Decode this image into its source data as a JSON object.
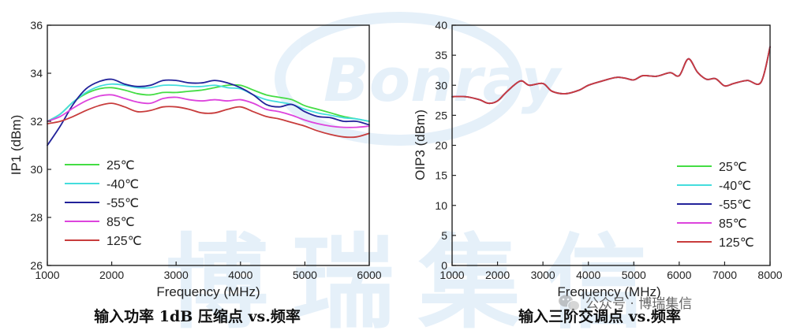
{
  "watermark": {
    "logo_text": "Bonray",
    "chars": [
      "博",
      "瑞",
      "集",
      "信"
    ]
  },
  "account_badge": {
    "icon": "wechat-icon",
    "label": "公众号 · 博瑞集信"
  },
  "colors": {
    "s25": "#44dd44",
    "sm40": "#44dddd",
    "sm55": "#22229a",
    "s85": "#dd44dd",
    "s125": "#c83c3c",
    "watermark": "#3f8fd8"
  },
  "chart_data": [
    {
      "type": "line",
      "caption": "输入功率 1dB 压缩点 vs.频率",
      "xlabel": "Frequency (MHz)",
      "ylabel": "IP1 (dBm)",
      "xlim": [
        1000,
        6000
      ],
      "ylim": [
        26,
        36
      ],
      "xticks": [
        1000,
        2000,
        3000,
        4000,
        5000,
        6000
      ],
      "yticks": [
        26,
        28,
        30,
        32,
        34,
        36
      ],
      "grid": false,
      "legend_position": "bottom-left",
      "series": [
        {
          "name": "25℃",
          "color_key": "s25",
          "x": [
            1000,
            1200,
            1400,
            1600,
            1800,
            2000,
            2200,
            2400,
            2600,
            2800,
            3000,
            3200,
            3400,
            3600,
            3800,
            4000,
            4200,
            4400,
            4600,
            4800,
            5000,
            5200,
            5400,
            5600,
            5800,
            6000
          ],
          "y": [
            32.0,
            32.3,
            32.8,
            33.15,
            33.35,
            33.4,
            33.3,
            33.15,
            33.1,
            33.2,
            33.2,
            33.25,
            33.3,
            33.4,
            33.5,
            33.5,
            33.3,
            33.1,
            33.0,
            32.9,
            32.65,
            32.5,
            32.35,
            32.2,
            32.1,
            32.0
          ]
        },
        {
          "name": "-40℃",
          "color_key": "sm40",
          "x": [
            1000,
            1200,
            1400,
            1600,
            1800,
            2000,
            2200,
            2400,
            2600,
            2800,
            3000,
            3200,
            3400,
            3600,
            3800,
            4000,
            4200,
            4400,
            4600,
            4800,
            5000,
            5200,
            5400,
            5600,
            5800,
            6000
          ],
          "y": [
            32.0,
            32.3,
            32.8,
            33.2,
            33.45,
            33.55,
            33.5,
            33.4,
            33.4,
            33.5,
            33.5,
            33.45,
            33.45,
            33.5,
            33.4,
            33.35,
            33.1,
            32.9,
            32.8,
            32.7,
            32.5,
            32.35,
            32.25,
            32.15,
            32.1,
            32.0
          ]
        },
        {
          "name": "-55℃",
          "color_key": "sm55",
          "x": [
            1000,
            1200,
            1400,
            1600,
            1800,
            2000,
            2200,
            2400,
            2600,
            2800,
            3000,
            3200,
            3400,
            3600,
            3800,
            4000,
            4200,
            4400,
            4600,
            4800,
            5000,
            5200,
            5400,
            5600,
            5800,
            6000
          ],
          "y": [
            31.0,
            31.8,
            32.7,
            33.35,
            33.65,
            33.75,
            33.55,
            33.45,
            33.5,
            33.7,
            33.7,
            33.6,
            33.6,
            33.7,
            33.6,
            33.4,
            33.1,
            32.7,
            32.6,
            32.7,
            32.4,
            32.2,
            32.15,
            32.0,
            32.0,
            31.85
          ]
        },
        {
          "name": "85℃",
          "color_key": "s85",
          "x": [
            1000,
            1200,
            1400,
            1600,
            1800,
            2000,
            2200,
            2400,
            2600,
            2800,
            3000,
            3200,
            3400,
            3600,
            3800,
            4000,
            4200,
            4400,
            4600,
            4800,
            5000,
            5200,
            5400,
            5600,
            5800,
            6000
          ],
          "y": [
            32.0,
            32.2,
            32.55,
            32.85,
            33.05,
            33.1,
            32.95,
            32.8,
            32.75,
            32.95,
            33.0,
            32.9,
            32.85,
            32.9,
            32.85,
            32.9,
            32.75,
            32.5,
            32.4,
            32.25,
            32.05,
            31.9,
            31.8,
            31.75,
            31.75,
            31.8
          ]
        },
        {
          "name": "125℃",
          "color_key": "s125",
          "x": [
            1000,
            1200,
            1400,
            1600,
            1800,
            2000,
            2200,
            2400,
            2600,
            2800,
            3000,
            3200,
            3400,
            3600,
            3800,
            4000,
            4200,
            4400,
            4600,
            4800,
            5000,
            5200,
            5400,
            5600,
            5800,
            6000
          ],
          "y": [
            31.9,
            32.0,
            32.2,
            32.45,
            32.65,
            32.75,
            32.6,
            32.4,
            32.45,
            32.6,
            32.6,
            32.5,
            32.35,
            32.35,
            32.5,
            32.6,
            32.4,
            32.2,
            32.1,
            31.95,
            31.8,
            31.6,
            31.45,
            31.35,
            31.35,
            31.5
          ]
        }
      ]
    },
    {
      "type": "line",
      "caption": "输入三阶交调点 vs.频率",
      "xlabel": "Frequency (MHz)",
      "ylabel": "OIP3 (dBm)",
      "xlim": [
        1000,
        8000
      ],
      "ylim": [
        0,
        40
      ],
      "xticks": [
        1000,
        2000,
        3000,
        4000,
        5000,
        6000,
        7000,
        8000
      ],
      "yticks": [
        0,
        5,
        10,
        15,
        20,
        25,
        30,
        35,
        40
      ],
      "grid": false,
      "legend_position": "bottom-right",
      "series": [
        {
          "name": "25℃",
          "color_key": "s25",
          "x": [
            1000,
            1300,
            1600,
            1800,
            2000,
            2200,
            2500,
            2700,
            3000,
            3200,
            3500,
            3800,
            4000,
            4300,
            4600,
            4800,
            5000,
            5200,
            5500,
            5800,
            6000,
            6200,
            6400,
            6600,
            6800,
            7000,
            7200,
            7500,
            7800,
            8000
          ],
          "y": [
            28.1,
            28.1,
            27.6,
            27.0,
            27.4,
            28.9,
            30.7,
            30.0,
            30.3,
            29.0,
            28.6,
            29.2,
            30.0,
            30.7,
            31.3,
            31.2,
            30.9,
            31.6,
            31.5,
            32.1,
            31.6,
            34.4,
            32.2,
            31.0,
            31.1,
            29.9,
            30.3,
            30.8,
            30.5,
            36.4
          ]
        },
        {
          "name": "-40℃",
          "color_key": "sm40",
          "x": [
            1000,
            1300,
            1600,
            1800,
            2000,
            2200,
            2500,
            2700,
            3000,
            3200,
            3500,
            3800,
            4000,
            4300,
            4600,
            4800,
            5000,
            5200,
            5500,
            5800,
            6000,
            6200,
            6400,
            6600,
            6800,
            7000,
            7200,
            7500,
            7800,
            8000
          ],
          "y": [
            28.1,
            28.1,
            27.6,
            27.0,
            27.4,
            28.9,
            30.7,
            30.0,
            30.3,
            29.0,
            28.6,
            29.2,
            30.0,
            30.7,
            31.3,
            31.2,
            30.9,
            31.6,
            31.5,
            32.1,
            31.6,
            34.4,
            32.2,
            31.0,
            31.1,
            29.9,
            30.3,
            30.8,
            30.5,
            36.4
          ]
        },
        {
          "name": "-55℃",
          "color_key": "sm55",
          "x": [
            1000,
            1300,
            1600,
            1800,
            2000,
            2200,
            2500,
            2700,
            3000,
            3200,
            3500,
            3800,
            4000,
            4300,
            4600,
            4800,
            5000,
            5200,
            5500,
            5800,
            6000,
            6200,
            6400,
            6600,
            6800,
            7000,
            7200,
            7500,
            7800,
            8000
          ],
          "y": [
            28.1,
            28.1,
            27.6,
            27.0,
            27.4,
            28.9,
            30.7,
            30.0,
            30.3,
            29.0,
            28.6,
            29.2,
            30.0,
            30.7,
            31.3,
            31.2,
            30.9,
            31.6,
            31.5,
            32.1,
            31.6,
            34.4,
            32.2,
            31.0,
            31.1,
            29.9,
            30.3,
            30.8,
            30.5,
            36.4
          ]
        },
        {
          "name": "85℃",
          "color_key": "s85",
          "x": [
            1000,
            1300,
            1600,
            1800,
            2000,
            2200,
            2500,
            2700,
            3000,
            3200,
            3500,
            3800,
            4000,
            4300,
            4600,
            4800,
            5000,
            5200,
            5500,
            5800,
            6000,
            6200,
            6400,
            6600,
            6800,
            7000,
            7200,
            7500,
            7800,
            8000
          ],
          "y": [
            28.1,
            28.1,
            27.6,
            27.0,
            27.4,
            28.9,
            30.7,
            30.0,
            30.3,
            29.0,
            28.6,
            29.2,
            30.0,
            30.7,
            31.3,
            31.2,
            30.9,
            31.6,
            31.5,
            32.1,
            31.6,
            34.4,
            32.2,
            31.0,
            31.1,
            29.9,
            30.3,
            30.8,
            30.5,
            36.4
          ]
        },
        {
          "name": "125℃",
          "color_key": "s125",
          "x": [
            1000,
            1300,
            1600,
            1800,
            2000,
            2200,
            2500,
            2700,
            3000,
            3200,
            3500,
            3800,
            4000,
            4300,
            4600,
            4800,
            5000,
            5200,
            5500,
            5800,
            6000,
            6200,
            6400,
            6600,
            6800,
            7000,
            7200,
            7500,
            7800,
            8000
          ],
          "y": [
            28.1,
            28.1,
            27.6,
            27.0,
            27.4,
            28.9,
            30.7,
            30.0,
            30.3,
            29.0,
            28.6,
            29.2,
            30.0,
            30.7,
            31.3,
            31.2,
            30.9,
            31.6,
            31.5,
            32.1,
            31.6,
            34.4,
            32.2,
            31.0,
            31.1,
            29.9,
            30.3,
            30.8,
            30.5,
            36.4
          ]
        }
      ]
    }
  ]
}
